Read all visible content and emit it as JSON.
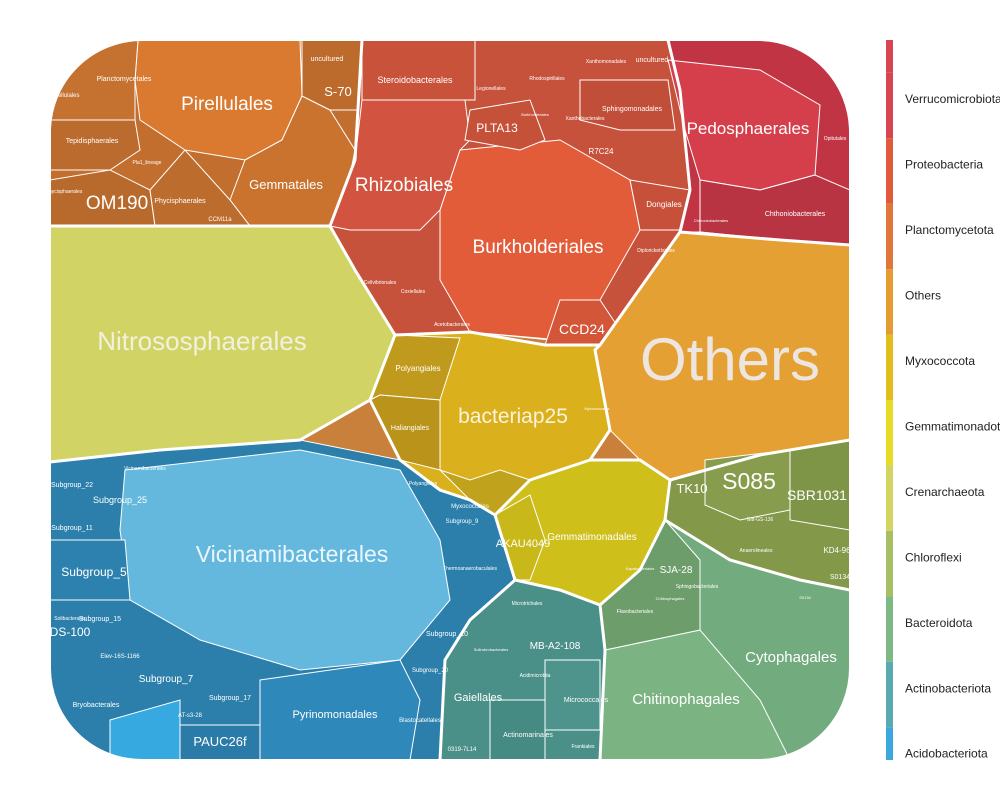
{
  "chart_data": {
    "type": "voronoi-treemap",
    "legend": {
      "placement": "right",
      "entries": [
        {
          "name": "Verrucomicrobiota",
          "color": "#D64550"
        },
        {
          "name": "Proteobacteria",
          "color": "#E05A3C"
        },
        {
          "name": "Planctomycetota",
          "color": "#E0763A"
        },
        {
          "name": "Others",
          "color": "#E39B32"
        },
        {
          "name": "Myxococcota",
          "color": "#E2BE1C"
        },
        {
          "name": "Gemmatimonadota",
          "color": "#E6DC26"
        },
        {
          "name": "Crenarchaeota",
          "color": "#D4D462"
        },
        {
          "name": "Chloroflexi",
          "color": "#A7BE62"
        },
        {
          "name": "Bacteroidota",
          "color": "#7DB984"
        },
        {
          "name": "Actinobacteriota",
          "color": "#59A9B1"
        },
        {
          "name": "Acidobacteriota",
          "color": "#3AA8DD"
        }
      ]
    },
    "cells": [
      {
        "name": "Others",
        "phylum": "Others",
        "color": "#E4A033"
      },
      {
        "name": "Nitrososphaerales",
        "phylum": "Crenarchaeota",
        "color": "#D1D464"
      },
      {
        "name": "Vicinamibacterales",
        "phylum": "Acidobacteriota",
        "color": "#64B8DE"
      },
      {
        "name": "Burkholderiales",
        "phylum": "Proteobacteria",
        "color": "#E35C3A"
      },
      {
        "name": "Rhizobiales",
        "phylum": "Proteobacteria",
        "color": "#D2533F"
      },
      {
        "name": "bacteriap25",
        "phylum": "Myxococcota",
        "color": "#DAB11D"
      },
      {
        "name": "Pirellulales",
        "phylum": "Planctomycetota",
        "color": "#DA7A30"
      },
      {
        "name": "Gemmatales",
        "phylum": "Planctomycetota",
        "color": "#C9732F"
      },
      {
        "name": "OM190",
        "phylum": "Planctomycetota",
        "color": "#C26E2E"
      },
      {
        "name": "Pedosphaerales",
        "phylum": "Verrucomicrobiota",
        "color": "#D53F4C"
      },
      {
        "name": "Chthoniobacterales",
        "phylum": "Verrucomicrobiota",
        "color": "#C03444"
      },
      {
        "name": "Chitinophagales",
        "phylum": "Bacteroidota",
        "color": "#7CB383"
      },
      {
        "name": "Cytophagales",
        "phylum": "Bacteroidota",
        "color": "#72AB7D"
      },
      {
        "name": "S085",
        "phylum": "Chloroflexi",
        "color": "#879C4C"
      },
      {
        "name": "SBR1031",
        "phylum": "Chloroflexi",
        "color": "#7E9446"
      },
      {
        "name": "Gemmatimonadales",
        "phylum": "Gemmatimonadota",
        "color": "#CFBF1A"
      },
      {
        "name": "Pyrinomonadales",
        "phylum": "Acidobacteriota",
        "color": "#2E88BA"
      },
      {
        "name": "Subgroup_5",
        "phylum": "Acidobacteriota",
        "color": "#2C7FAB"
      },
      {
        "name": "Gaiellales",
        "phylum": "Actinobacteriota",
        "color": "#4A9088"
      },
      {
        "name": "Steroidobacterales",
        "phylum": "Proteobacteria",
        "color": "#C8523A"
      },
      {
        "name": "CCD24",
        "phylum": "Proteobacteria",
        "color": "#D45638"
      },
      {
        "name": "PLTA13",
        "phylum": "Proteobacteria",
        "color": "#C65139"
      },
      {
        "name": "Polyangiales",
        "phylum": "Myxococcota",
        "color": "#C09A1C"
      },
      {
        "name": "Haliangiales",
        "phylum": "Myxococcota",
        "color": "#B9931A"
      },
      {
        "name": "AKAU4049",
        "phylum": "Gemmatimonadota",
        "color": "#C8B81A"
      },
      {
        "name": "TK10",
        "phylum": "Chloroflexi",
        "color": "#839848"
      },
      {
        "name": "SJA-28",
        "phylum": "Bacteroidota",
        "color": "#6E9D6C"
      },
      {
        "name": "MB-A2-108",
        "phylum": "Actinobacteriota",
        "color": "#4A8E87"
      },
      {
        "name": "Micrococcales",
        "phylum": "Actinobacteriota",
        "color": "#4F948C"
      },
      {
        "name": "Actinomarinales",
        "phylum": "Actinobacteriota",
        "color": "#458A83"
      },
      {
        "name": "PAUC26f",
        "phylum": "Acidobacteriota",
        "color": "#2A7BA7"
      },
      {
        "name": "Subgroup_7",
        "phylum": "Acidobacteriota",
        "color": "#2E81AD"
      },
      {
        "name": "DS-100",
        "phylum": "Acidobacteriota",
        "color": "#2A7AA4"
      },
      {
        "name": "S-70",
        "phylum": "Planctomycetota",
        "color": "#BC6B2C"
      },
      {
        "name": "Sphingomonadales",
        "phylum": "Proteobacteria",
        "color": "#C7523C"
      },
      {
        "name": "Dongiales",
        "phylum": "Proteobacteria",
        "color": "#C6503A"
      },
      {
        "name": "Tepidisphaerales",
        "phylum": "Planctomycetota",
        "color": "#B86A2C"
      },
      {
        "name": "Phycisphaerales",
        "phylum": "Planctomycetota",
        "color": "#B8692B"
      },
      {
        "name": "Subgroup_25",
        "phylum": "Acidobacteriota",
        "color": "#2B7DA9"
      },
      {
        "name": "Subgroup_11",
        "phylum": "Acidobacteriota",
        "color": "#2B7CA8"
      },
      {
        "name": "Subgroup_15",
        "phylum": "Acidobacteriota",
        "color": "#2C7EA9"
      },
      {
        "name": "Subgroup_17",
        "phylum": "Acidobacteriota",
        "color": "#2B7CA7"
      },
      {
        "name": "Bryobacterales",
        "phylum": "Acidobacteriota",
        "color": "#2A7AA5"
      },
      {
        "name": "Blastocatellales",
        "phylum": "Acidobacteriota",
        "color": "#2D84B2"
      },
      {
        "name": "Cellvibrionales",
        "phylum": "Proteobacteria",
        "color": "#B94D38"
      },
      {
        "name": "Acetobacterales",
        "phylum": "Proteobacteria",
        "color": "#BD4E37"
      },
      {
        "name": "Anaerolineales",
        "phylum": "Chloroflexi",
        "color": "#7B9143"
      },
      {
        "name": "Flavobacteriales",
        "phylum": "Bacteroidota",
        "color": "#6A9C6A"
      },
      {
        "name": "Sphingobacteriales",
        "phylum": "Bacteroidota",
        "color": "#69996A"
      }
    ]
  },
  "labels": {
    "big": [
      {
        "text": "Others"
      },
      {
        "text": "Nitrososphaerales"
      },
      {
        "text": "Vicinamibacterales"
      },
      {
        "text": "Burkholderiales"
      },
      {
        "text": "Rhizobiales"
      },
      {
        "text": "bacteriap25"
      },
      {
        "text": "Pirellulales"
      },
      {
        "text": "Pedosphaerales"
      },
      {
        "text": "S085"
      },
      {
        "text": "OM190"
      },
      {
        "text": "Cytophagales"
      },
      {
        "text": "Chitinophagales"
      }
    ],
    "medium": [
      "Gemmatales",
      "Steroidobacterales",
      "PLTA13",
      "CCD24",
      "Dongiales",
      "SBR1031",
      "TK10",
      "Gemmatimonadales",
      "AKAU4049",
      "SJA-28",
      "Gaiellales",
      "MB-A2-108",
      "Micrococcales",
      "Actinomarinales",
      "Pyrinomonadales",
      "PAUC26f",
      "Subgroup_5",
      "Subgroup_7",
      "DS-100",
      "Polyangiales",
      "Haliangiales",
      "S-70",
      "Sphingomonadales",
      "Chthoniobacterales",
      "Tepidisphaerales",
      "Phycisphaerales",
      "Subgroup_25",
      "Subgroup_11",
      "Subgroup_15",
      "Subgroup_17",
      "Subgroup_22",
      "Bryobacterales",
      "Planctomycetales",
      "uncultured",
      "uncultured",
      "R7C24",
      "KD4-96",
      "Blastocatellales",
      "Thermoanaerobaculales",
      "Subgroup_10",
      "Subgroup_20",
      "Subgroup_9",
      "Myxococcales",
      "Polyangiales",
      "Vicinamibacterales",
      "0319-7L14",
      "Frankiales",
      "AT-s3-28",
      "Elev-16S-1166",
      "Solibacterales",
      "Gitt-GS-136",
      "S0134",
      "Anaerolineales",
      "Flavobacteriales",
      "Sphingobacteriales",
      "Diplorickettsiales",
      "Acetobacterales",
      "Cellvibrionales",
      "Coxiellales",
      "Chthoniobacterales",
      "Opitutales",
      "Xanthomonadales",
      "Pirellulales",
      "Pla1_lineage",
      "CCM11a",
      "Phycisphaerales",
      "Rhodospirillales",
      "Legionellales",
      "Burkholderiales",
      "Xanthobacterales",
      "Kapabacteriales",
      "Chitinophagales",
      "Microtrichales",
      "Solirubrobacterales",
      "Acidimicrobiia",
      "Myxococcales",
      "S0134"
    ]
  }
}
